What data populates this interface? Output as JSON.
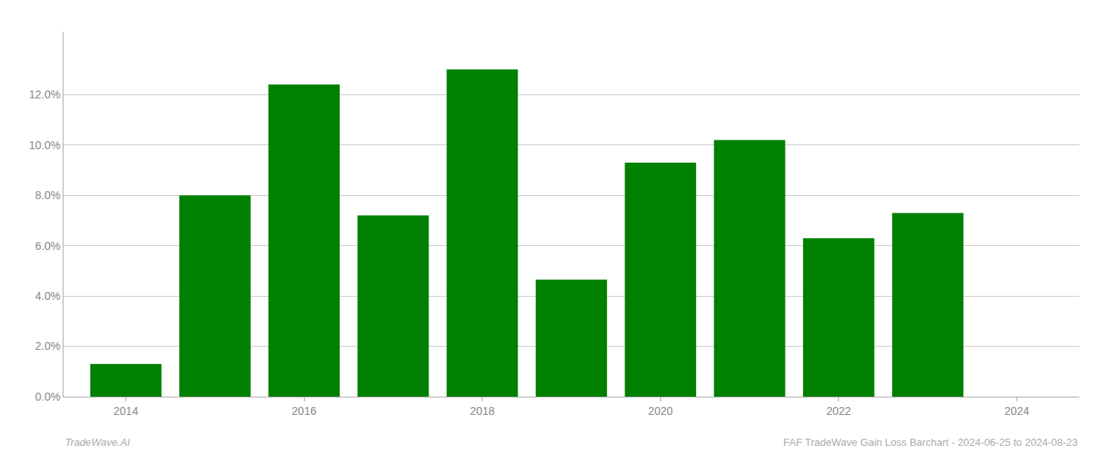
{
  "chart_data": {
    "type": "bar",
    "x": [
      2014,
      2015,
      2016,
      2017,
      2018,
      2019,
      2020,
      2021,
      2022,
      2023
    ],
    "values": [
      1.3,
      8.0,
      12.4,
      7.2,
      13.0,
      4.65,
      9.3,
      10.2,
      6.3,
      7.3
    ],
    "color": "#008000",
    "xlim": [
      2013.3,
      2024.7
    ],
    "xticks": [
      2014,
      2016,
      2018,
      2020,
      2022,
      2024
    ],
    "ylim": [
      0,
      14.5
    ],
    "yticks": [
      {
        "value": 0.0,
        "label": "0.0%"
      },
      {
        "value": 2.0,
        "label": "2.0%"
      },
      {
        "value": 4.0,
        "label": "4.0%"
      },
      {
        "value": 6.0,
        "label": "6.0%"
      },
      {
        "value": 8.0,
        "label": "8.0%"
      },
      {
        "value": 10.0,
        "label": "10.0%"
      },
      {
        "value": 12.0,
        "label": "12.0%"
      }
    ],
    "grid": true,
    "annotations": [
      "TradeWave.AI",
      "FAF TradeWave Gain Loss Barchart - 2024-06-25 to 2024-08-23"
    ]
  }
}
